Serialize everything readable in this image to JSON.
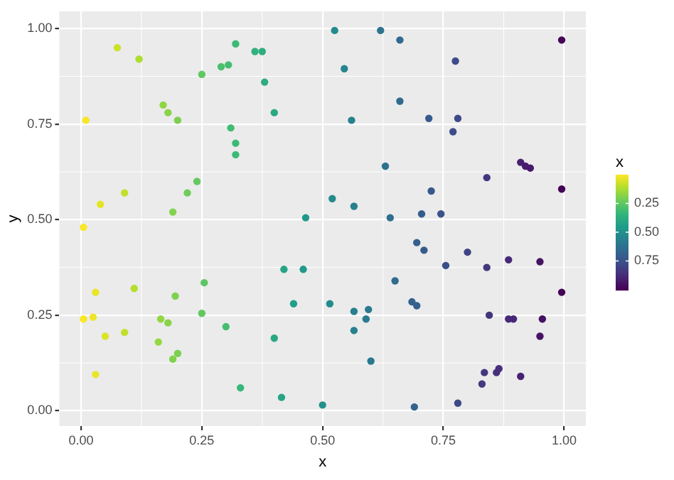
{
  "chart_data": {
    "type": "scatter",
    "xlabel": "x",
    "ylabel": "y",
    "clabel": "x",
    "grid": true,
    "legend": false,
    "marker": "circle",
    "xlim": [
      -0.045,
      1.045
    ],
    "ylim": [
      -0.04,
      1.045
    ],
    "xticks": [
      {
        "value": 0,
        "label": "0.00"
      },
      {
        "value": 0.25,
        "label": "0.25"
      },
      {
        "value": 0.5,
        "label": "0.50"
      },
      {
        "value": 0.75,
        "label": "0.75"
      },
      {
        "value": 1,
        "label": "1.00"
      }
    ],
    "yticks": [
      {
        "value": 0,
        "label": "0.00"
      },
      {
        "value": 0.25,
        "label": "0.25"
      },
      {
        "value": 0.5,
        "label": "0.50"
      },
      {
        "value": 0.75,
        "label": "0.75"
      },
      {
        "value": 1,
        "label": "1.00"
      }
    ],
    "clim": [
      0,
      1
    ],
    "cticks": [
      {
        "value": 0.25,
        "label": "0.25"
      },
      {
        "value": 0.5,
        "label": "0.50"
      },
      {
        "value": 0.75,
        "label": "0.75"
      }
    ],
    "series": [
      {
        "x": [
          0.075,
          0.12,
          0.01,
          0.17,
          0.18,
          0.2,
          0.25,
          0.29,
          0.305,
          0.32,
          0.36,
          0.375,
          0.38,
          0.4,
          0.31,
          0.32,
          0.32,
          0.24,
          0.22,
          0.19,
          0.09,
          0.04,
          0.005,
          0.42,
          0.46,
          0.255,
          0.11,
          0.03,
          0.195,
          0.44,
          0.515,
          0.25,
          0.005,
          0.025,
          0.165,
          0.18,
          0.3,
          0.09,
          0.05,
          0.16,
          0.4,
          0.2,
          0.19,
          0.03,
          0.33,
          0.415,
          0.5,
          0.465,
          0.525,
          0.62,
          0.66,
          0.995,
          0.775,
          0.545,
          0.66,
          0.56,
          0.72,
          0.78,
          0.77,
          0.63,
          0.91,
          0.92,
          0.93,
          0.84,
          0.995,
          0.52,
          0.565,
          0.725,
          0.705,
          0.745,
          0.64,
          0.695,
          0.71,
          0.8,
          0.885,
          0.95,
          0.755,
          0.84,
          0.65,
          0.995,
          0.685,
          0.695,
          0.565,
          0.595,
          0.59,
          0.565,
          0.845,
          0.885,
          0.895,
          0.955,
          0.95,
          0.6,
          0.835,
          0.86,
          0.865,
          0.91,
          0.83,
          0.69,
          0.78
        ],
        "values": [
          0.95,
          0.92,
          0.76,
          0.8,
          0.78,
          0.76,
          0.88,
          0.9,
          0.905,
          0.96,
          0.94,
          0.94,
          0.86,
          0.78,
          0.74,
          0.7,
          0.67,
          0.6,
          0.57,
          0.52,
          0.57,
          0.54,
          0.48,
          0.37,
          0.37,
          0.335,
          0.32,
          0.31,
          0.3,
          0.28,
          0.28,
          0.255,
          0.24,
          0.245,
          0.24,
          0.23,
          0.22,
          0.205,
          0.195,
          0.18,
          0.19,
          0.15,
          0.135,
          0.095,
          0.06,
          0.035,
          0.015,
          0.505,
          0.995,
          0.995,
          0.97,
          0.97,
          0.915,
          0.895,
          0.81,
          0.76,
          0.765,
          0.765,
          0.73,
          0.64,
          0.65,
          0.64,
          0.635,
          0.61,
          0.58,
          0.555,
          0.535,
          0.575,
          0.515,
          0.515,
          0.505,
          0.44,
          0.42,
          0.415,
          0.395,
          0.39,
          0.38,
          0.375,
          0.34,
          0.31,
          0.285,
          0.275,
          0.26,
          0.265,
          0.24,
          0.21,
          0.25,
          0.24,
          0.24,
          0.24,
          0.195,
          0.13,
          0.1,
          0.1,
          0.11,
          0.09,
          0.07,
          0.01,
          0.02
        ],
        "cvalues": [
          0.075,
          0.12,
          0.01,
          0.17,
          0.18,
          0.2,
          0.25,
          0.29,
          0.305,
          0.32,
          0.36,
          0.375,
          0.38,
          0.4,
          0.31,
          0.32,
          0.32,
          0.24,
          0.22,
          0.19,
          0.09,
          0.04,
          0.005,
          0.42,
          0.46,
          0.255,
          0.11,
          0.03,
          0.195,
          0.44,
          0.515,
          0.25,
          0.005,
          0.025,
          0.165,
          0.18,
          0.3,
          0.09,
          0.05,
          0.16,
          0.4,
          0.2,
          0.19,
          0.03,
          0.33,
          0.415,
          0.5,
          0.465,
          0.525,
          0.62,
          0.66,
          0.995,
          0.775,
          0.545,
          0.66,
          0.56,
          0.72,
          0.78,
          0.77,
          0.63,
          0.91,
          0.92,
          0.93,
          0.84,
          0.995,
          0.52,
          0.565,
          0.725,
          0.705,
          0.745,
          0.64,
          0.695,
          0.71,
          0.8,
          0.885,
          0.95,
          0.755,
          0.84,
          0.65,
          0.995,
          0.685,
          0.695,
          0.565,
          0.595,
          0.59,
          0.565,
          0.845,
          0.885,
          0.895,
          0.955,
          0.95,
          0.6,
          0.835,
          0.86,
          0.865,
          0.91,
          0.83,
          0.69,
          0.78
        ]
      }
    ]
  }
}
